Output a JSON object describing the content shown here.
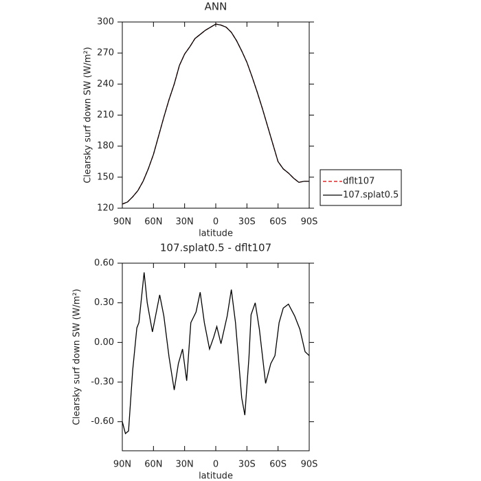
{
  "chart_data": [
    {
      "type": "line",
      "title": "ANN",
      "xlabel": "latitude",
      "ylabel": "Clearsky surf down SW (W/m²)",
      "x": [
        90,
        85,
        80,
        75,
        70,
        65,
        60,
        55,
        50,
        45,
        40,
        35,
        30,
        25,
        20,
        15,
        10,
        5,
        0,
        -5,
        -10,
        -15,
        -20,
        -25,
        -30,
        -35,
        -40,
        -45,
        -50,
        -55,
        -60,
        -65,
        -70,
        -75,
        -80,
        -85,
        -90
      ],
      "series": [
        {
          "name": "dflt107",
          "color": "#cc0000",
          "line_style": "dashed",
          "values": [
            124,
            126,
            131,
            137,
            146,
            158,
            172,
            190,
            208,
            225,
            240,
            258,
            269,
            276,
            284,
            288,
            292,
            295,
            298,
            297,
            295,
            290,
            282,
            272,
            261,
            247,
            232,
            216,
            199,
            182,
            165,
            158,
            154,
            149,
            145,
            146,
            146
          ]
        },
        {
          "name": "107.splat0.5",
          "color": "#000000",
          "line_style": "solid",
          "values": [
            124,
            126,
            131,
            137,
            146,
            158,
            172,
            190,
            208,
            225,
            240,
            258,
            269,
            276,
            284,
            288,
            292,
            295,
            298,
            297,
            295,
            290,
            282,
            272,
            261,
            247,
            232,
            216,
            199,
            182,
            165,
            158,
            154,
            149,
            145,
            146,
            146
          ]
        }
      ],
      "xlim": [
        90,
        -90
      ],
      "xticks": [
        {
          "value": 90,
          "label": "90N"
        },
        {
          "value": 60,
          "label": "60N"
        },
        {
          "value": 30,
          "label": "30N"
        },
        0,
        {
          "value": -30,
          "label": "30S"
        },
        {
          "value": -60,
          "label": "60S"
        },
        {
          "value": -90,
          "label": "90S"
        }
      ],
      "ylim": [
        120,
        300
      ],
      "yticks": [
        120,
        150,
        180,
        210,
        240,
        270,
        300
      ],
      "legend": "right"
    },
    {
      "type": "line",
      "title": "107.splat0.5 - dflt107",
      "xlabel": "latitude",
      "ylabel": "Clearsky surf down SW (W/m²)",
      "x": [
        90,
        87,
        84,
        80,
        76,
        74,
        69,
        66,
        61,
        54,
        50,
        45,
        40,
        36,
        32,
        28,
        24,
        19,
        15,
        11,
        6,
        2,
        -1,
        -5,
        -11,
        -15,
        -19,
        -25,
        -28,
        -32,
        -34,
        -38,
        -42,
        -48,
        -53,
        -57,
        -61,
        -65,
        -70,
        -76,
        -81,
        -86,
        -90
      ],
      "series": [
        {
          "name": "107.splat0.5 - dflt107",
          "color": "#000000",
          "line_style": "solid",
          "values": [
            -0.6,
            -0.69,
            -0.67,
            -0.21,
            0.11,
            0.15,
            0.53,
            0.3,
            0.08,
            0.36,
            0.2,
            -0.11,
            -0.36,
            -0.16,
            -0.05,
            -0.29,
            0.15,
            0.23,
            0.38,
            0.15,
            -0.05,
            0.04,
            0.12,
            -0.01,
            0.2,
            0.4,
            0.15,
            -0.42,
            -0.55,
            -0.11,
            0.21,
            0.3,
            0.1,
            -0.31,
            -0.16,
            -0.1,
            0.15,
            0.26,
            0.29,
            0.2,
            0.1,
            -0.07,
            -0.1
          ]
        }
      ],
      "xlim": [
        90,
        -90
      ],
      "xticks": [
        {
          "value": 90,
          "label": "90N"
        },
        {
          "value": 60,
          "label": "60N"
        },
        {
          "value": 30,
          "label": "30N"
        },
        0,
        {
          "value": -30,
          "label": "30S"
        },
        {
          "value": -60,
          "label": "60S"
        },
        {
          "value": -90,
          "label": "90S"
        }
      ],
      "ylim": [
        -0.82,
        0.6
      ],
      "yticks": [
        {
          "value": 0.6,
          "label": "0.60"
        },
        {
          "value": 0.3,
          "label": "0.30"
        },
        {
          "value": 0,
          "label": "0.00"
        },
        {
          "value": -0.3,
          "label": "-0.30"
        },
        {
          "value": -0.6,
          "label": "-0.60"
        }
      ]
    }
  ]
}
